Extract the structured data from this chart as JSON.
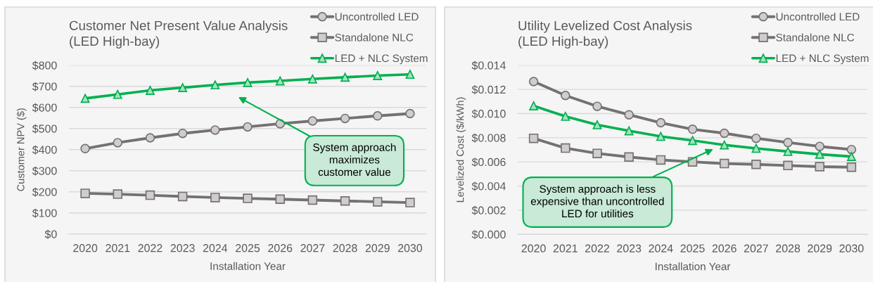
{
  "chart_data": [
    {
      "type": "line",
      "title": "Customer Net Present Value Analysis\n(LED High-bay)",
      "xlabel": "Installation Year",
      "ylabel": "Customer NPV ($)",
      "x": [
        2020,
        2021,
        2022,
        2023,
        2024,
        2025,
        2026,
        2027,
        2028,
        2029,
        2030
      ],
      "xlim": [
        2019.5,
        2030.5
      ],
      "xticks": [
        2020,
        2021,
        2022,
        2023,
        2024,
        2025,
        2026,
        2027,
        2028,
        2029,
        2030
      ],
      "ylim": [
        0,
        800
      ],
      "yticks": [
        {
          "value": 0,
          "label": "$0"
        },
        {
          "value": 100,
          "label": "$100"
        },
        {
          "value": 200,
          "label": "$200"
        },
        {
          "value": 300,
          "label": "$300"
        },
        {
          "value": 400,
          "label": "$400"
        },
        {
          "value": 500,
          "label": "$500"
        },
        {
          "value": 600,
          "label": "$600"
        },
        {
          "value": 700,
          "label": "$700"
        },
        {
          "value": 800,
          "label": "$800"
        }
      ],
      "grid": "y",
      "legend": "top right",
      "series": [
        {
          "name": "Uncontrolled LED",
          "color": "#767171",
          "marker": "circle",
          "values": [
            405,
            433,
            456,
            477,
            493,
            508,
            523,
            536,
            548,
            560,
            571
          ]
        },
        {
          "name": "Standalone NLC",
          "color": "#767171",
          "marker": "square",
          "values": [
            193,
            189,
            184,
            178,
            173,
            169,
            165,
            161,
            157,
            153,
            149
          ]
        },
        {
          "name": "LED + NLC System",
          "color": "#00b050",
          "marker": "triangle",
          "values": [
            643,
            662,
            681,
            694,
            707,
            718,
            726,
            735,
            743,
            751,
            757
          ]
        }
      ],
      "annotations": [
        "System approach\nmaximizes\ncustomer value"
      ]
    },
    {
      "type": "line",
      "title": "Utility Levelized Cost Analysis\n(LED High-bay)",
      "xlabel": "Installation Year",
      "ylabel": "Levelized Cost ($/kWh)",
      "x": [
        2020,
        2021,
        2022,
        2023,
        2024,
        2025,
        2026,
        2027,
        2028,
        2029,
        2030
      ],
      "xlim": [
        2019.5,
        2030.5
      ],
      "xticks": [
        2020,
        2021,
        2022,
        2023,
        2024,
        2025,
        2026,
        2027,
        2028,
        2029,
        2030
      ],
      "ylim": [
        0,
        0.014
      ],
      "yticks": [
        {
          "value": 0,
          "label": "$0.000"
        },
        {
          "value": 0.002,
          "label": "$0.002"
        },
        {
          "value": 0.004,
          "label": "$0.004"
        },
        {
          "value": 0.006,
          "label": "$0.006"
        },
        {
          "value": 0.008,
          "label": "$0.008"
        },
        {
          "value": 0.01,
          "label": "$0.010"
        },
        {
          "value": 0.012,
          "label": "$0.012"
        },
        {
          "value": 0.014,
          "label": "$0.014"
        }
      ],
      "grid": "y",
      "legend": "top right",
      "series": [
        {
          "name": "Uncontrolled LED",
          "color": "#767171",
          "marker": "circle",
          "values": [
            0.01265,
            0.0115,
            0.0106,
            0.0099,
            0.00924,
            0.0087,
            0.00837,
            0.00795,
            0.0076,
            0.00728,
            0.00702
          ]
        },
        {
          "name": "Standalone NLC",
          "color": "#767171",
          "marker": "square",
          "values": [
            0.00795,
            0.00714,
            0.0067,
            0.0064,
            0.00616,
            0.006,
            0.00586,
            0.00579,
            0.0057,
            0.0056,
            0.00556
          ]
        },
        {
          "name": "LED + NLC System",
          "color": "#00b050",
          "marker": "triangle",
          "values": [
            0.01064,
            0.00977,
            0.00907,
            0.00857,
            0.00811,
            0.00777,
            0.0074,
            0.00712,
            0.00686,
            0.00663,
            0.00644
          ]
        }
      ],
      "annotations": [
        "System approach is less\nexpensive than uncontrolled\nLED for utilities"
      ]
    }
  ]
}
